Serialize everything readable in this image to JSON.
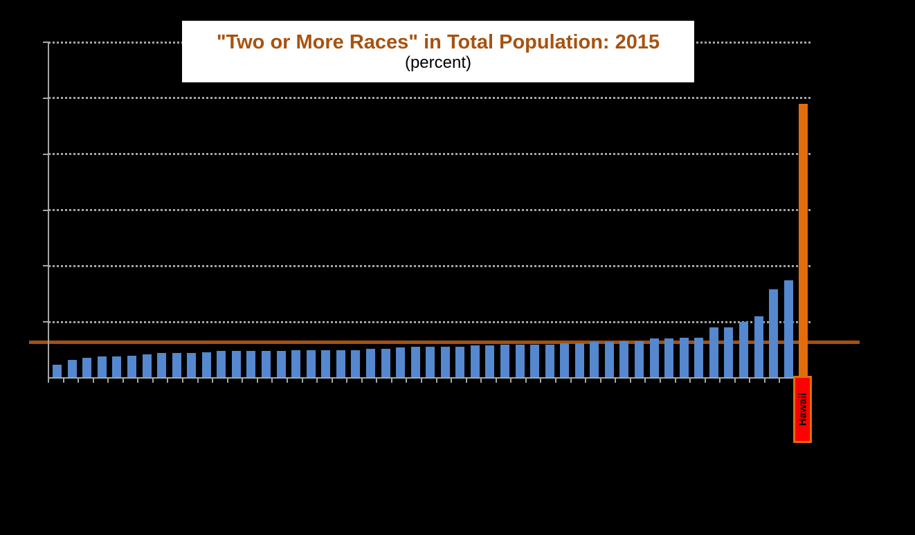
{
  "header": {
    "title": "\"Two or More Races\" in Total Population: 2015",
    "subtitle": "(percent)"
  },
  "colors": {
    "background": "#000000",
    "bar": "#5588CE",
    "highlight_bar": "#E36D0C",
    "reference_line": "#A45110",
    "axis": "#A6A6A6",
    "gridline": "#A6A6A6",
    "title_text": "#A8520F",
    "subtitle_text": "#000000",
    "title_box_background": "#FFFFFF",
    "highlight_label_background": "#FF0000",
    "highlight_label_border": "#E36D0C",
    "highlight_label_text": "#000000"
  },
  "chart_data": {
    "type": "bar",
    "title": "\"Two or More Races\" in Total Population: 2015",
    "subtitle": "(percent)",
    "unit": "percent",
    "values": [
      1.2,
      1.6,
      1.8,
      1.9,
      1.9,
      2.0,
      2.1,
      2.2,
      2.2,
      2.2,
      2.3,
      2.4,
      2.4,
      2.4,
      2.4,
      2.4,
      2.5,
      2.5,
      2.5,
      2.5,
      2.5,
      2.6,
      2.6,
      2.7,
      2.8,
      2.8,
      2.8,
      2.8,
      2.9,
      2.9,
      3.0,
      3.0,
      3.0,
      3.0,
      3.1,
      3.1,
      3.2,
      3.2,
      3.3,
      3.3,
      3.5,
      3.5,
      3.6,
      3.6,
      4.5,
      4.5,
      5.0,
      5.5,
      7.9,
      8.7,
      24.5
    ],
    "n_bars": 51,
    "highlight": {
      "index": 50,
      "label": "Hawaii",
      "value": 24.5
    },
    "reference_line": {
      "value": 3.2
    },
    "y_axis": {
      "min": 0,
      "max": 30,
      "gridline_interval": 5,
      "tick_labels_visible": false
    },
    "x_axis": {
      "tick_count": 52,
      "category_labels_visible": false,
      "visible_labels": [
        "Hawaii"
      ]
    },
    "legend": "none",
    "grid": "horizontal-dotted"
  }
}
